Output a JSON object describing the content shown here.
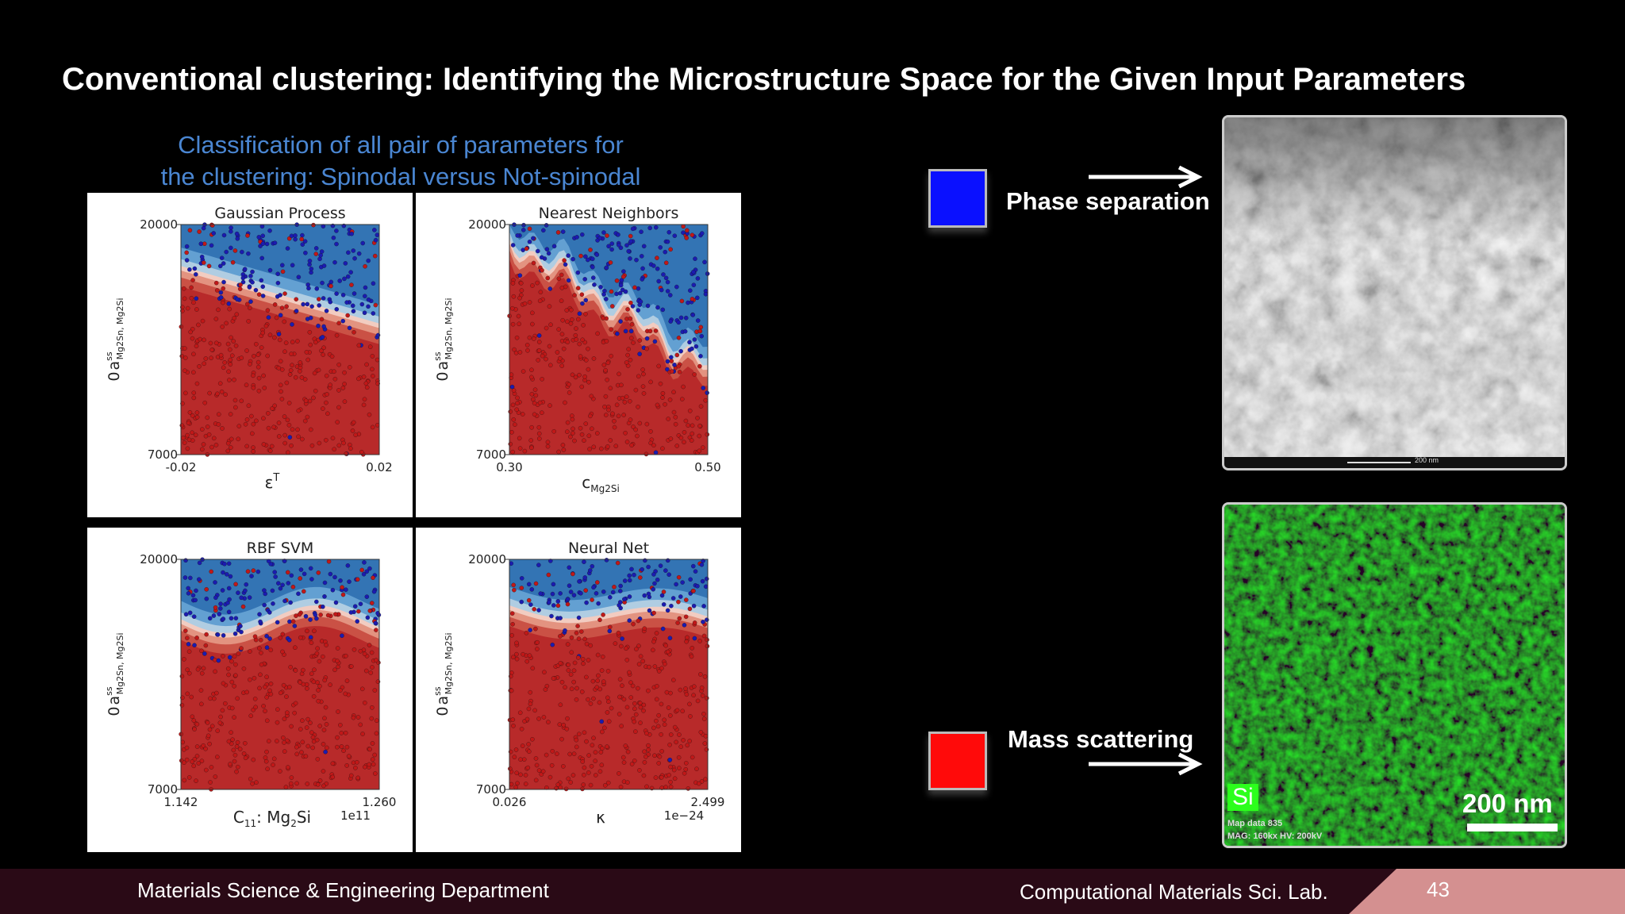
{
  "slide": {
    "title": "Conventional clustering: Identifying the Microstructure Space for the Given Input Parameters",
    "subtitle_line1": "Classification of all pair of parameters for",
    "subtitle_line2": "the clustering: Spinodal versus Not-spinodal"
  },
  "legend": {
    "blue_label": "Phase separation",
    "red_label": "Mass scattering",
    "blue_color": "#0a10ff",
    "red_color": "#ff0a0a"
  },
  "micrographs": {
    "top_scale_text": "200 nm",
    "bottom_element": "Si",
    "bottom_scale_text": "200 nm",
    "bottom_meta_line1": "Map data 835",
    "bottom_meta_line2": "MAG: 160kx HV: 200kV"
  },
  "footer": {
    "left": "Materials Science & Engineering Department",
    "right": "Computational Materials Sci. Lab.",
    "page": "43"
  },
  "chart_data": [
    {
      "type": "scatter",
      "title": "Gaussian Process",
      "xlabel": "ε",
      "xlabel_sup": "T",
      "ylabel": "a",
      "ylabel_sub": "Mg2Sn, Mg2Si",
      "ylabel_sup": "ss",
      "ylabel_prefix": "0",
      "x_ticks": [
        "-0.02",
        "0.02"
      ],
      "y_ticks": [
        "20000",
        "7000"
      ],
      "xlim": [
        -0.02,
        0.02
      ],
      "ylim": [
        7000,
        20000
      ],
      "xlabel_offset": "",
      "classes": [
        "Phase separation",
        "Mass scattering"
      ],
      "boundary": "smooth diagonal, blue upper region"
    },
    {
      "type": "scatter",
      "title": "Nearest Neighbors",
      "xlabel": "c",
      "xlabel_sub": "Mg2Si",
      "ylabel": "a",
      "ylabel_sub": "Mg2Sn, Mg2Si",
      "ylabel_sup": "ss",
      "ylabel_prefix": "0",
      "x_ticks": [
        "0.30",
        "0.50"
      ],
      "y_ticks": [
        "20000",
        "7000"
      ],
      "xlim": [
        0.3,
        0.5
      ],
      "ylim": [
        7000,
        20000
      ],
      "xlabel_offset": "",
      "classes": [
        "Phase separation",
        "Mass scattering"
      ],
      "boundary": "jagged diagonal, blue upper-right"
    },
    {
      "type": "scatter",
      "title": "RBF SVM",
      "xlabel": "C",
      "xlabel_sub": "11",
      "xlabel_suffix": ": Mg",
      "xlabel_suffix_sub": "2",
      "xlabel_suffix_tail": "Si",
      "ylabel": "a",
      "ylabel_sub": "Mg2Sn, Mg2Si",
      "ylabel_sup": "ss",
      "ylabel_prefix": "0",
      "x_ticks": [
        "1.142",
        "1.260"
      ],
      "y_ticks": [
        "20000",
        "7000"
      ],
      "xlim": [
        1.142,
        1.26
      ],
      "ylim": [
        7000,
        20000
      ],
      "xlabel_offset": "1e11",
      "classes": [
        "Phase separation",
        "Mass scattering"
      ],
      "boundary": "wavy horizontal, blue top"
    },
    {
      "type": "scatter",
      "title": "Neural Net",
      "xlabel": "κ",
      "ylabel": "a",
      "ylabel_sub": "Mg2Sn, Mg2Si",
      "ylabel_sup": "ss",
      "ylabel_prefix": "0",
      "x_ticks": [
        "0.026",
        "2.499"
      ],
      "y_ticks": [
        "20000",
        "7000"
      ],
      "xlim": [
        0.026,
        2.499
      ],
      "ylim": [
        7000,
        20000
      ],
      "xlabel_offset": "1e−24",
      "classes": [
        "Phase separation",
        "Mass scattering"
      ],
      "boundary": "gentle horizontal, blue top"
    }
  ]
}
